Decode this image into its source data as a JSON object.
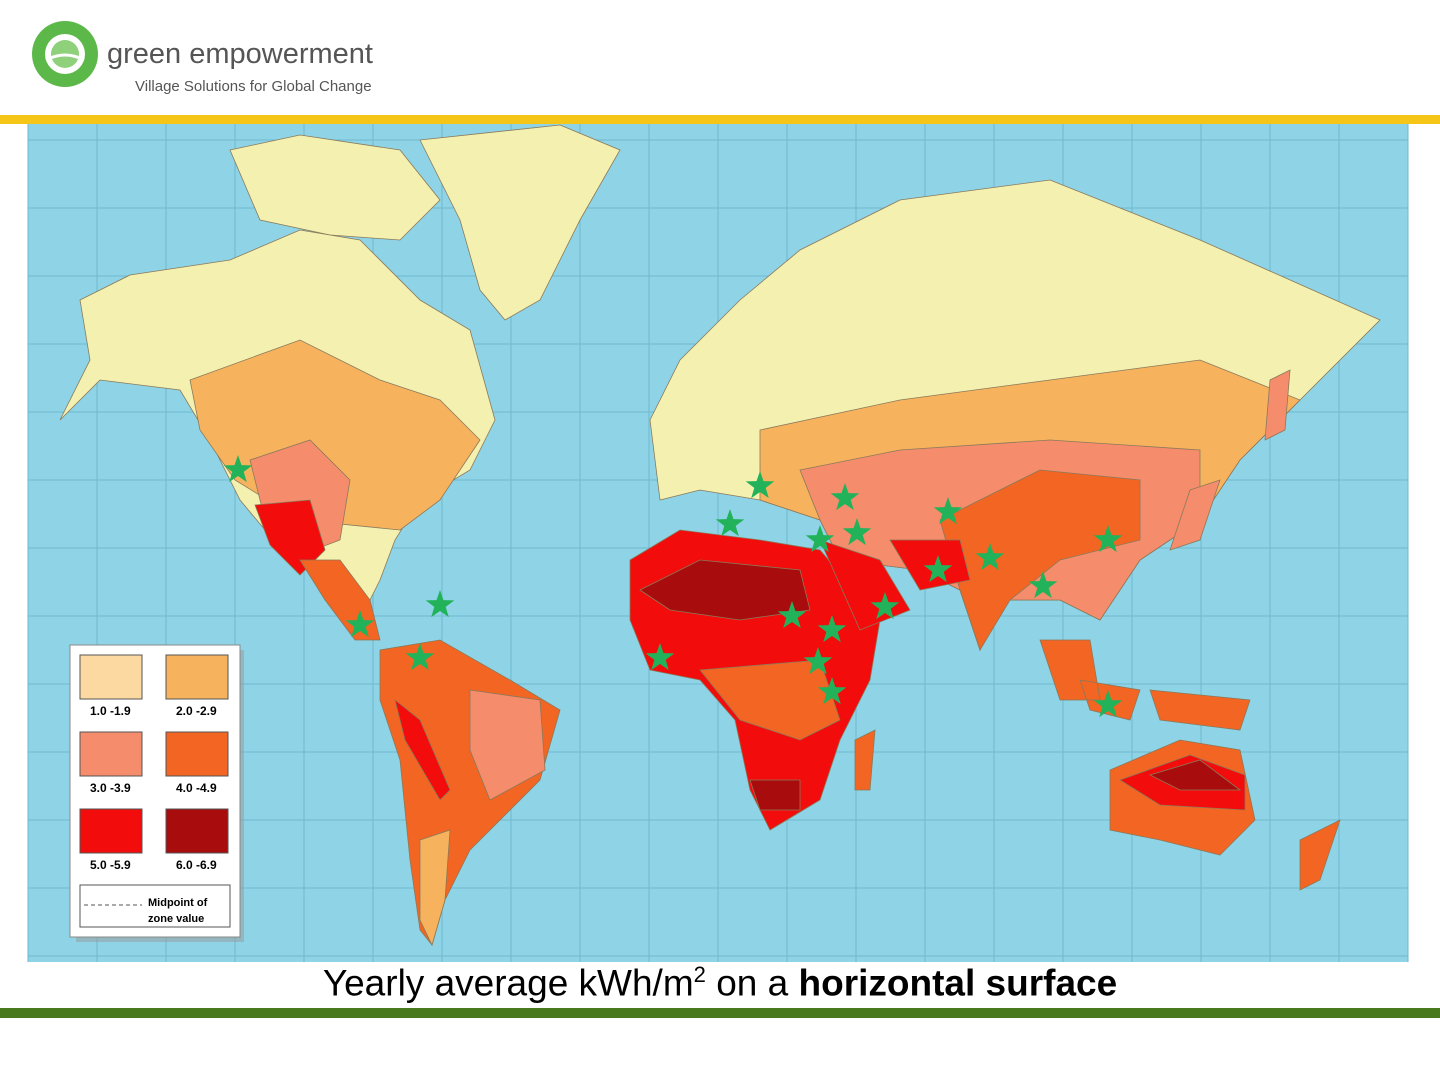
{
  "header": {
    "title": "green empowerment",
    "tagline": "Village Solutions for Global Change"
  },
  "legend": {
    "items": [
      {
        "label": "1.0 -1.9",
        "color": "#fbd9a0"
      },
      {
        "label": "2.0 -2.9",
        "color": "#f7b25e"
      },
      {
        "label": "3.0 -3.9",
        "color": "#f58c6c"
      },
      {
        "label": "4.0 -4.9",
        "color": "#f26522"
      },
      {
        "label": "5.0 -5.9",
        "color": "#f20c0c"
      },
      {
        "label": "6.0 -6.9",
        "color": "#a80c0c"
      }
    ],
    "note": [
      "Midpoint of",
      "zone value"
    ]
  },
  "caption": {
    "text": "Yearly average kWh/m",
    "superscript": "2",
    "middle": " on a ",
    "bold": "horizontal surface"
  }
}
